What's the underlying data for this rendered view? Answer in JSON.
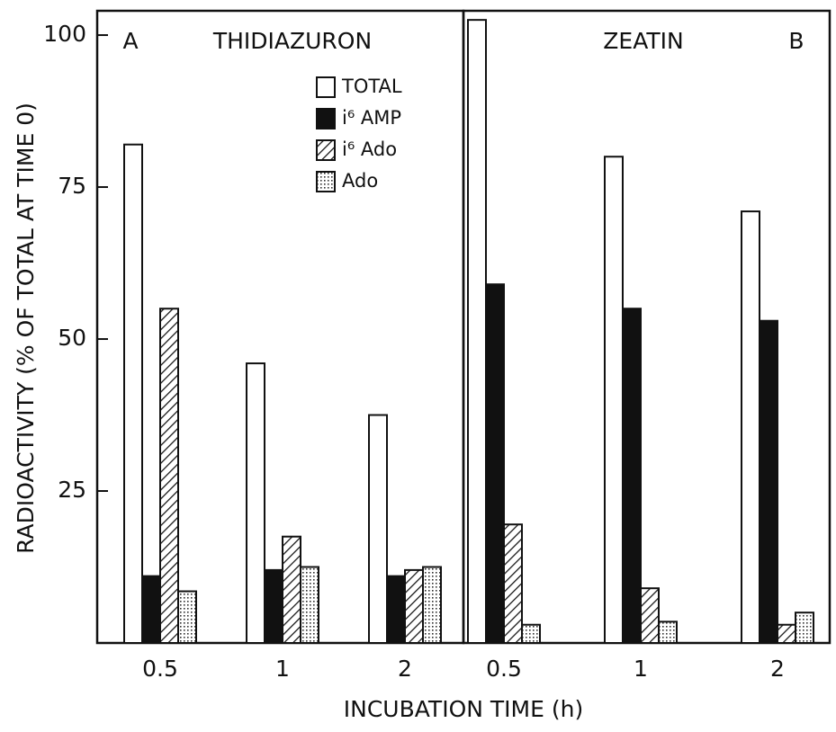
{
  "chart_data": [
    {
      "type": "bar",
      "panel": "A",
      "title": "THIDIAZURON",
      "ylabel": "RADIOACTIVITY (% OF TOTAL AT TIME 0)",
      "xlabel": "INCUBATION TIME   (h)",
      "categories": [
        "0.5",
        "1",
        "2"
      ],
      "series": [
        {
          "name": "TOTAL",
          "pattern": "white",
          "values": [
            82,
            46,
            37.5
          ]
        },
        {
          "name": "i⁶ AMP",
          "pattern": "black",
          "values": [
            11,
            12,
            11
          ]
        },
        {
          "name": "i⁶ Ado",
          "pattern": "hatch",
          "values": [
            55,
            17.5,
            12
          ]
        },
        {
          "name": "Ado",
          "pattern": "dots",
          "values": [
            8.5,
            12.5,
            12.5
          ]
        }
      ],
      "ylim": [
        0,
        104
      ],
      "yticks": [
        25,
        50,
        75,
        100
      ],
      "legend": "upper center"
    },
    {
      "type": "bar",
      "panel": "B",
      "title": "ZEATIN",
      "categories": [
        "0.5",
        "1",
        "2"
      ],
      "series": [
        {
          "name": "TOTAL",
          "pattern": "white",
          "values": [
            102.5,
            80,
            71
          ]
        },
        {
          "name": "i⁶ AMP",
          "pattern": "black",
          "values": [
            59,
            55,
            53
          ]
        },
        {
          "name": "i⁶ Ado",
          "pattern": "hatch",
          "values": [
            19.5,
            9,
            3
          ]
        },
        {
          "name": "Ado",
          "pattern": "dots",
          "values": [
            3,
            3.5,
            5
          ]
        }
      ],
      "ylim": [
        0,
        104
      ]
    }
  ]
}
